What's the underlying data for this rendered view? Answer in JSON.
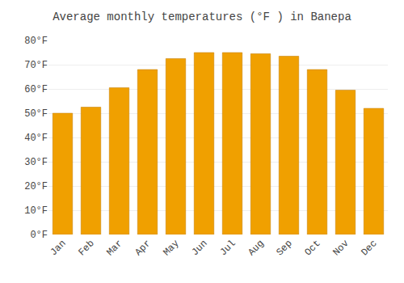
{
  "chart_data": {
    "type": "bar",
    "title": "Average monthly temperatures (°F ) in Banepa",
    "categories": [
      "Jan",
      "Feb",
      "Mar",
      "Apr",
      "May",
      "Jun",
      "Jul",
      "Aug",
      "Sep",
      "Oct",
      "Nov",
      "Dec"
    ],
    "values": [
      50,
      52.5,
      60.5,
      68,
      72.5,
      75,
      75,
      74.5,
      73.5,
      68,
      59.5,
      52
    ],
    "color": "#F0A000",
    "ylim": [
      0,
      80
    ],
    "yticks": [
      {
        "value": 0,
        "label": "0°F"
      },
      {
        "value": 10,
        "label": "10°F"
      },
      {
        "value": 20,
        "label": "20°F"
      },
      {
        "value": 30,
        "label": "30°F"
      },
      {
        "value": 40,
        "label": "40°F"
      },
      {
        "value": 50,
        "label": "50°F"
      },
      {
        "value": 60,
        "label": "60°F"
      },
      {
        "value": 70,
        "label": "70°F"
      },
      {
        "value": 80,
        "label": "80°F"
      }
    ],
    "grid": true
  }
}
